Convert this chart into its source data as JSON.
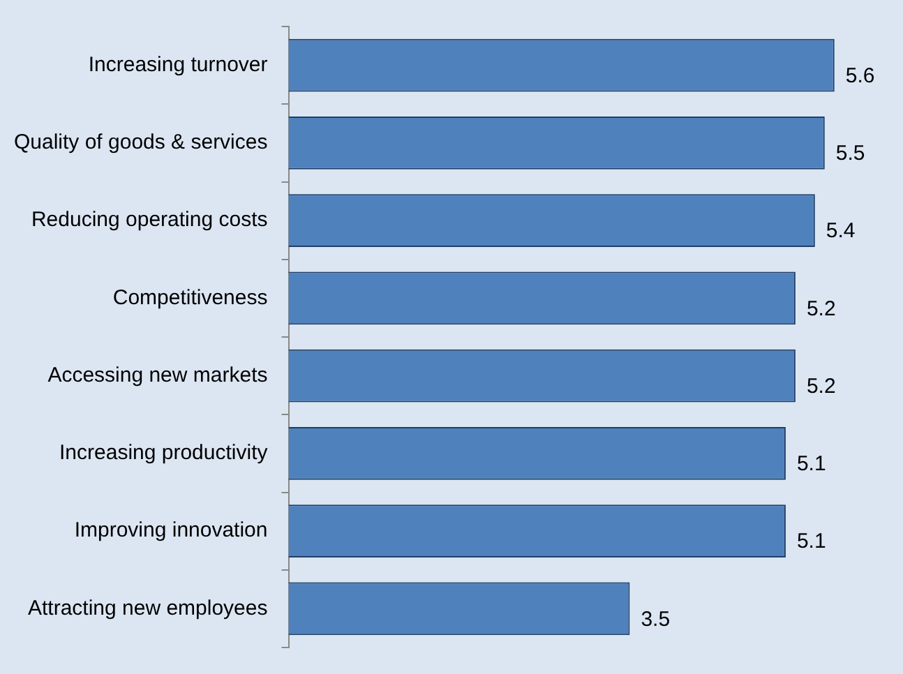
{
  "chart_data": {
    "type": "bar",
    "orientation": "horizontal",
    "categories": [
      "Increasing turnover",
      "Quality of goods & services",
      "Reducing operating costs",
      "Competitiveness",
      "Accessing new markets",
      "Increasing productivity",
      "Improving innovation",
      "Attracting new employees"
    ],
    "values": [
      5.6,
      5.5,
      5.4,
      5.2,
      5.2,
      5.1,
      5.1,
      3.5
    ],
    "color": "#4f81bd",
    "data_labels": true,
    "grid": false,
    "legend": false
  }
}
